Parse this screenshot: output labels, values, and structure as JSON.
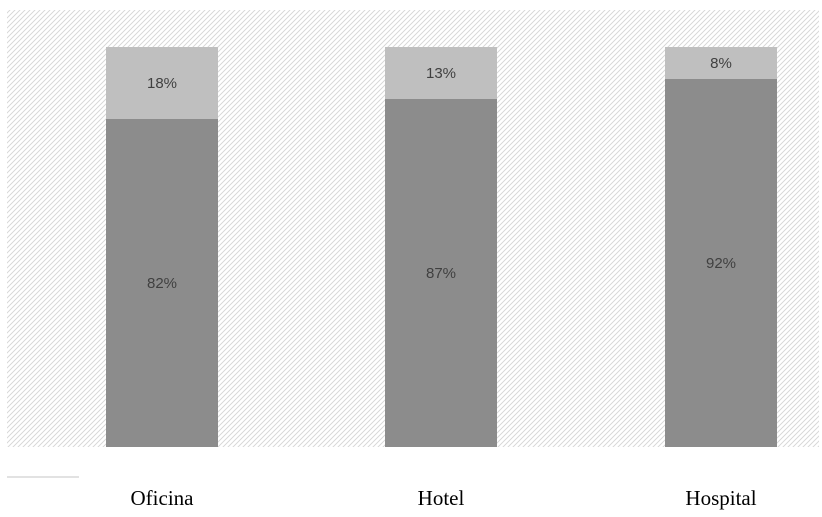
{
  "chart_data": {
    "type": "bar",
    "stacked": true,
    "percent_stacked": true,
    "categories": [
      "Oficina",
      "Hotel",
      "Hospital"
    ],
    "series": [
      {
        "values": [
          82,
          87,
          92
        ],
        "labels": [
          "82%",
          "87%",
          "92%"
        ],
        "color": "#8c8c8c"
      },
      {
        "values": [
          18,
          13,
          8
        ],
        "labels": [
          "18%",
          "13%",
          "8%"
        ],
        "color": "#bfbfbf"
      }
    ],
    "ylim": [
      0,
      100
    ],
    "grid": false,
    "legend": "none",
    "plot_background": "hatched-diagonal-light-gray"
  }
}
